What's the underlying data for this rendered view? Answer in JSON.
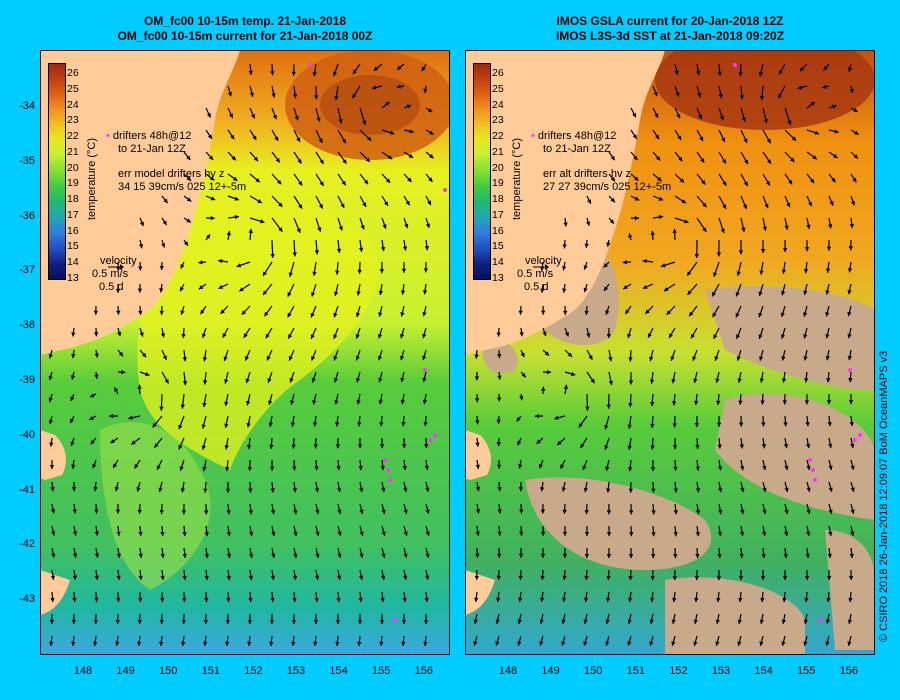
{
  "left_panel": {
    "title_line1": "OM_fc00 10-15m temp. 21-Jan-2018",
    "title_line2": "OM_fc00 10-15m current for 21-Jan-2018 00Z",
    "drifters_line1": "drifters 48h@12",
    "drifters_line2": "to 21-Jan 12Z",
    "err_line1": "err model drifters hv z",
    "err_line2": "34 15 39cm/s 025 12+-5m"
  },
  "right_panel": {
    "title_line1": "IMOS GSLA current for 20-Jan-2018 12Z",
    "title_line2": "IMOS L3S-3d SST at 21-Jan-2018 09:20Z",
    "drifters_line1": "drifters 48h@12",
    "drifters_line2": "to 21-Jan 12Z",
    "err_line1": "err alt drifters hv z",
    "err_line2": "27 27 39cm/s 025 12+-5m"
  },
  "velocity_legend": {
    "label": "velocity",
    "speed": "0.5 m/s",
    "days": "0.5 d"
  },
  "colorbar": {
    "title": "temperature (°C)",
    "ticks": [
      "26",
      "25",
      "24",
      "23",
      "22",
      "21",
      "20",
      "19",
      "18",
      "17",
      "16",
      "15",
      "14",
      "13"
    ]
  },
  "lat_ticks": [
    "-34",
    "-35",
    "-36",
    "-37",
    "-38",
    "-39",
    "-40",
    "-41",
    "-42",
    "-43"
  ],
  "lon_ticks": [
    "148",
    "149",
    "150",
    "151",
    "152",
    "153",
    "154",
    "155",
    "156"
  ],
  "credit": "© CSIRO 2018  26-Jan-2018 12:09:07 BoM OceanMAPS v3",
  "colors": {
    "frame": "#00ccff",
    "land": "#ffcc99",
    "missing_data": "#c8a98a",
    "drifter": "#ff33ff"
  }
}
